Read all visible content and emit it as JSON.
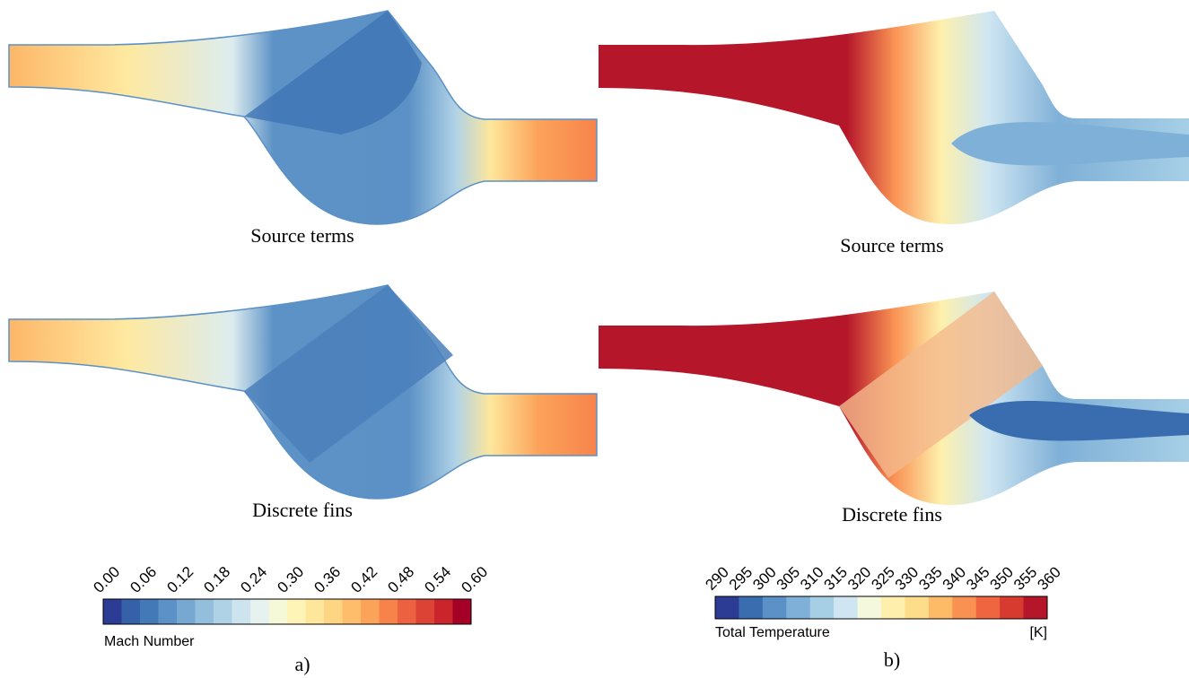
{
  "panels": [
    {
      "caption": "Source terms"
    },
    {
      "caption": "Discrete fins"
    },
    {
      "caption": "Source terms"
    },
    {
      "caption": "Discrete fins"
    }
  ],
  "colorbars": [
    {
      "title": "Mach Number",
      "ticks": [
        "0.00",
        "0.06",
        "0.12",
        "0.18",
        "0.24",
        "0.30",
        "0.36",
        "0.42",
        "0.48",
        "0.54",
        "0.60"
      ],
      "colors": [
        "#2c3c94",
        "#3561a8",
        "#4479b8",
        "#5b91c6",
        "#76a8d2",
        "#93bfdd",
        "#b0d2e6",
        "#cde4ee",
        "#e6f2ef",
        "#f6f9d7",
        "#fef4b8",
        "#fee79b",
        "#fed583",
        "#fdbd6b",
        "#fca35a",
        "#f7834b",
        "#ec6240",
        "#dd4334",
        "#c9252b",
        "#a50026"
      ]
    },
    {
      "title": "Total Temperature",
      "unit": "[K]",
      "ticks": [
        "290",
        "295",
        "300",
        "305",
        "310",
        "315",
        "320",
        "325",
        "330",
        "335",
        "340",
        "345",
        "350",
        "355",
        "360"
      ],
      "colors": [
        "#2c3c94",
        "#3a6db0",
        "#5b91c6",
        "#7fb0d7",
        "#a6cfe6",
        "#cfe6f2",
        "#f4f8dc",
        "#fef0ac",
        "#fedd8a",
        "#fdbb68",
        "#f99153",
        "#ee6540",
        "#d73a2e",
        "#b5162a"
      ]
    }
  ],
  "labels": [
    "a)",
    "b)"
  ]
}
